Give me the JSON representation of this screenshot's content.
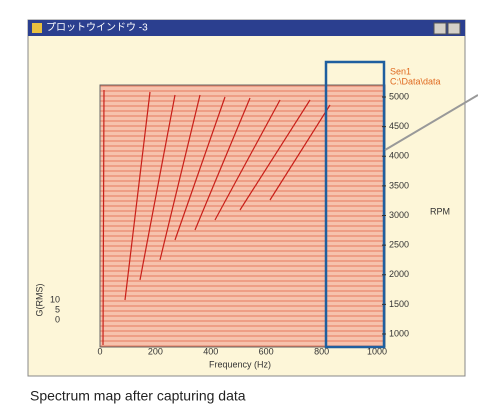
{
  "window": {
    "title": "プロットウインドウ -3"
  },
  "plot": {
    "legend": [
      "Sen1",
      "C:\\Data\\data"
    ],
    "x_axis": {
      "label": "Frequency (Hz)",
      "ticks": [
        "0",
        "200",
        "400",
        "600",
        "800",
        "1000"
      ]
    },
    "rpm_axis": {
      "label": "RPM",
      "ticks": [
        "1000",
        "1500",
        "2000",
        "2500",
        "3000",
        "3500",
        "4000",
        "4500",
        "5000"
      ]
    },
    "amplitude_axis": {
      "label": "G(RMS)",
      "ticks": [
        "10",
        "5",
        "0"
      ]
    }
  },
  "caption": "Spectrum map after capturing data"
}
